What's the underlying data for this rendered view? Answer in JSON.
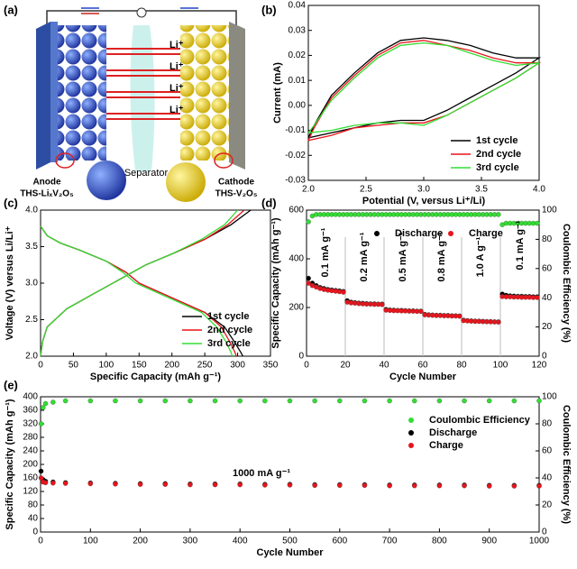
{
  "diagram": {
    "panel": "(a)",
    "li_labels": [
      "Li⁺",
      "Li⁺",
      "Li⁺",
      "Li⁺"
    ],
    "separator": "Separator",
    "anode": "Anode",
    "anode_material": "THS-LiₓV₂O₅",
    "cathode": "Cathode",
    "cathode_material": "THS-V₂O₅"
  },
  "chart_data": [
    {
      "type": "line",
      "panel": "(b)",
      "xlabel": "Potential (V, versus Li⁺/Li)",
      "ylabel": "Current (mA)",
      "xlim": [
        2.0,
        4.0
      ],
      "xticks": [
        {
          "value": 2,
          "label": "2.0"
        },
        2.5,
        {
          "value": 3,
          "label": "3.0"
        },
        3.5,
        {
          "value": 4,
          "label": "4.0"
        }
      ],
      "ylim": [
        -0.03,
        0.04
      ],
      "yticks": [
        -0.03,
        -0.02,
        -0.01,
        {
          "value": 0,
          "label": "0.00"
        },
        0.01,
        0.02,
        0.03,
        0.04
      ],
      "legend": "lower right",
      "series": [
        {
          "name": "1st cycle",
          "color": "#000000",
          "x": [
            2.0,
            2.2,
            2.4,
            2.6,
            2.8,
            3.0,
            3.2,
            3.4,
            3.6,
            3.8,
            4.0,
            3.8,
            3.6,
            3.4,
            3.2,
            3.0,
            2.8,
            2.6,
            2.4,
            2.2,
            2.05,
            2.0
          ],
          "values": [
            -0.013,
            -0.011,
            -0.009,
            -0.007,
            -0.006,
            -0.006,
            -0.002,
            0.003,
            0.008,
            0.013,
            0.019,
            0.019,
            0.021,
            0.024,
            0.026,
            0.027,
            0.026,
            0.021,
            0.013,
            0.004,
            -0.008,
            -0.013
          ]
        },
        {
          "name": "2nd cycle",
          "color": "#e8141c",
          "x": [
            2.0,
            2.2,
            2.4,
            2.6,
            2.8,
            3.0,
            3.2,
            3.4,
            3.6,
            3.8,
            4.0,
            3.8,
            3.6,
            3.4,
            3.2,
            3.0,
            2.8,
            2.6,
            2.4,
            2.2,
            2.05,
            2.0
          ],
          "values": [
            -0.014,
            -0.012,
            -0.009,
            -0.008,
            -0.007,
            -0.007,
            -0.004,
            0.001,
            0.006,
            0.011,
            0.017,
            0.017,
            0.019,
            0.022,
            0.024,
            0.026,
            0.025,
            0.02,
            0.012,
            0.003,
            -0.009,
            -0.014
          ]
        },
        {
          "name": "3rd cycle",
          "color": "#33dd33",
          "x": [
            2.0,
            2.2,
            2.4,
            2.6,
            2.8,
            3.0,
            3.2,
            3.4,
            3.6,
            3.8,
            4.0,
            3.8,
            3.6,
            3.4,
            3.2,
            3.0,
            2.8,
            2.6,
            2.4,
            2.2,
            2.05,
            2.0
          ],
          "values": [
            -0.011,
            -0.01,
            -0.008,
            -0.007,
            -0.007,
            -0.008,
            -0.004,
            0.001,
            0.006,
            0.011,
            0.017,
            0.016,
            0.018,
            0.021,
            0.024,
            0.025,
            0.024,
            0.019,
            0.011,
            0.002,
            -0.008,
            -0.011
          ]
        }
      ]
    },
    {
      "type": "line",
      "panel": "(c)",
      "xlabel": "Specific Capacity (mAh g⁻¹)",
      "ylabel": "Voltage (V) versus Li/Li⁺",
      "xlim": [
        0,
        350
      ],
      "xticks": [
        0,
        50,
        100,
        150,
        200,
        250,
        300,
        350
      ],
      "ylim": [
        2.0,
        4.0
      ],
      "yticks": [
        {
          "value": 2,
          "label": "2.0"
        },
        2.5,
        {
          "value": 3,
          "label": "3.0"
        },
        3.5,
        {
          "value": 4,
          "label": "4.0"
        }
      ],
      "legend": "lower right",
      "series": [
        {
          "name": "1st cycle",
          "color": "#000000",
          "x": [
            0,
            10,
            30,
            60,
            100,
            130,
            150,
            200,
            250,
            280,
            295,
            305,
            308,
            null,
            0,
            3,
            10,
            40,
            80,
            120,
            160,
            200,
            250,
            290,
            320
          ],
          "values": [
            3.78,
            3.65,
            3.55,
            3.45,
            3.3,
            3.15,
            3.0,
            2.8,
            2.6,
            2.4,
            2.2,
            2.05,
            2.0,
            null,
            2.0,
            2.2,
            2.4,
            2.65,
            2.85,
            3.05,
            3.25,
            3.4,
            3.6,
            3.8,
            4.0
          ]
        },
        {
          "name": "2nd cycle",
          "color": "#e8141c",
          "x": [
            0,
            10,
            30,
            60,
            100,
            130,
            150,
            200,
            250,
            275,
            288,
            296,
            298,
            null,
            0,
            3,
            10,
            40,
            80,
            120,
            160,
            200,
            250,
            285,
            310
          ],
          "values": [
            3.78,
            3.65,
            3.55,
            3.45,
            3.3,
            3.15,
            3.0,
            2.8,
            2.6,
            2.4,
            2.2,
            2.05,
            2.0,
            null,
            2.0,
            2.2,
            2.4,
            2.65,
            2.85,
            3.05,
            3.25,
            3.4,
            3.6,
            3.8,
            4.0
          ]
        },
        {
          "name": "3rd cycle",
          "color": "#33dd33",
          "x": [
            0,
            10,
            30,
            60,
            100,
            125,
            145,
            195,
            245,
            268,
            282,
            290,
            292,
            null,
            0,
            3,
            10,
            40,
            80,
            120,
            160,
            200,
            245,
            280,
            300
          ],
          "values": [
            3.78,
            3.65,
            3.55,
            3.45,
            3.3,
            3.15,
            3.0,
            2.8,
            2.6,
            2.4,
            2.2,
            2.05,
            2.0,
            null,
            2.0,
            2.2,
            2.4,
            2.65,
            2.85,
            3.05,
            3.25,
            3.4,
            3.6,
            3.8,
            4.0
          ]
        }
      ]
    },
    {
      "type": "scatter",
      "panel": "(d)",
      "xlabel": "Cycle Number",
      "ylabel": "Specific Capacity (mAh g⁻¹)",
      "y2label": "Coulombic Efficiency (%)",
      "xlim": [
        0,
        120
      ],
      "xticks": [
        0,
        20,
        40,
        60,
        80,
        100,
        120
      ],
      "ylim": [
        0,
        600
      ],
      "yticks": [
        0,
        200,
        400,
        600
      ],
      "y2lim": [
        0,
        100
      ],
      "y2ticks": [
        0,
        20,
        40,
        60,
        80,
        100
      ],
      "legend": "upper center",
      "annotations": [
        "0.1 mA g⁻¹",
        "0.2 mA g⁻¹",
        "0.5 mA g⁻¹",
        "0.8 mA g⁻¹",
        "1.0 A g⁻¹",
        "0.1 mA g⁻¹"
      ],
      "x": [
        1,
        3,
        5,
        7,
        9,
        11,
        13,
        15,
        17,
        19,
        21,
        23,
        25,
        27,
        29,
        31,
        33,
        35,
        37,
        39,
        41,
        43,
        45,
        47,
        49,
        51,
        53,
        55,
        57,
        59,
        61,
        63,
        65,
        67,
        69,
        71,
        73,
        75,
        77,
        79,
        81,
        83,
        85,
        87,
        89,
        91,
        93,
        95,
        97,
        99,
        101,
        103,
        105,
        107,
        109,
        111,
        113,
        115,
        117,
        119
      ],
      "series": [
        {
          "color": "#33dd33",
          "axis": "y2",
          "values": [
            92,
            96,
            97,
            97,
            97,
            97,
            97,
            97,
            97,
            97,
            97,
            97,
            97,
            97,
            97,
            97,
            97,
            97,
            97,
            97,
            97,
            97,
            97,
            97,
            97,
            97,
            97,
            97,
            97,
            97,
            97,
            97,
            97,
            97,
            97,
            97,
            97,
            97,
            97,
            97,
            97,
            97,
            97,
            97,
            97,
            97,
            97,
            97,
            97,
            97,
            90,
            91,
            91,
            91,
            91,
            91,
            91,
            91,
            91,
            91
          ]
        },
        {
          "name": "Discharge",
          "color": "#000000",
          "values": [
            320,
            300,
            290,
            282,
            278,
            274,
            272,
            270,
            268,
            266,
            228,
            222,
            220,
            218,
            217,
            216,
            215,
            215,
            214,
            214,
            192,
            190,
            189,
            188,
            188,
            187,
            186,
            186,
            185,
            185,
            172,
            170,
            169,
            168,
            168,
            167,
            167,
            166,
            166,
            165,
            148,
            146,
            145,
            144,
            144,
            143,
            142,
            142,
            141,
            141,
            255,
            250,
            248,
            247,
            246,
            246,
            245,
            245,
            244,
            244
          ]
        },
        {
          "name": "Charge",
          "color": "#e8141c",
          "values": [
            300,
            290,
            284,
            278,
            274,
            271,
            269,
            267,
            265,
            263,
            222,
            219,
            218,
            216,
            215,
            214,
            214,
            213,
            213,
            212,
            189,
            188,
            187,
            187,
            186,
            186,
            185,
            185,
            184,
            184,
            170,
            169,
            168,
            167,
            167,
            166,
            166,
            165,
            165,
            164,
            146,
            145,
            144,
            143,
            143,
            142,
            142,
            141,
            141,
            140,
            245,
            244,
            244,
            243,
            243,
            242,
            242,
            242,
            241,
            241
          ]
        }
      ]
    },
    {
      "type": "scatter",
      "panel": "(e)",
      "xlabel": "Cycle Number",
      "ylabel": "Specific Capacity (mAh g⁻¹)",
      "y2label": "Coulombic Efficiency (%)",
      "xlim": [
        0,
        1000
      ],
      "xticks": [
        0,
        100,
        200,
        300,
        400,
        500,
        600,
        700,
        800,
        900,
        1000
      ],
      "ylim": [
        0,
        400
      ],
      "yticks": [
        0,
        40,
        80,
        120,
        160,
        200,
        240,
        280,
        320,
        360,
        400
      ],
      "y2lim": [
        0,
        100
      ],
      "y2ticks": [
        0,
        20,
        40,
        60,
        80,
        100
      ],
      "legend": "upper right",
      "annotations": [
        "1000 mA g⁻¹"
      ],
      "x": [
        1,
        5,
        10,
        25,
        50,
        100,
        150,
        200,
        250,
        300,
        350,
        400,
        450,
        500,
        550,
        600,
        650,
        700,
        750,
        800,
        850,
        900,
        950,
        1000
      ],
      "series": [
        {
          "name": "Coulombic Efficiency",
          "color": "#33dd33",
          "axis": "y2",
          "values": [
            80,
            92,
            95,
            96,
            97,
            97,
            97,
            97,
            97,
            97,
            97,
            97,
            97,
            97,
            97,
            97,
            97,
            97,
            97,
            97,
            97,
            97,
            97,
            97
          ]
        },
        {
          "name": "Discharge",
          "color": "#000000",
          "values": [
            180,
            155,
            150,
            148,
            146,
            145,
            144,
            143,
            143,
            142,
            142,
            142,
            141,
            141,
            140,
            140,
            140,
            139,
            139,
            139,
            139,
            138,
            138,
            138
          ]
        },
        {
          "name": "Charge",
          "color": "#e8141c",
          "values": [
            160,
            148,
            146,
            145,
            144,
            143,
            142,
            141,
            141,
            140,
            140,
            140,
            139,
            139,
            138,
            138,
            138,
            137,
            137,
            137,
            137,
            136,
            136,
            136
          ]
        }
      ]
    }
  ]
}
